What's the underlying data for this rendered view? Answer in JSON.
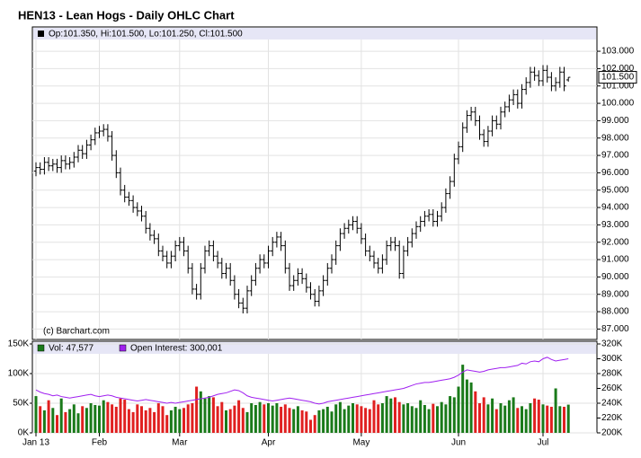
{
  "chart_data": [
    {
      "type": "ohlc",
      "title": "HEN13 - Lean Hogs - Daily OHLC Chart",
      "legend": "Op:101.350, Hi:101.500, Lo:101.250, Cl:101.500",
      "credit": "(c) Barchart.com",
      "color": "#000000",
      "open": [
        96.1,
        96.3,
        96.2,
        96.6,
        96.4,
        96.5,
        96.3,
        96.7,
        96.5,
        96.6,
        96.9,
        97.3,
        97.1,
        97.6,
        97.9,
        98.3,
        98.4,
        98.5,
        98.1,
        97.0,
        96.0,
        95.0,
        94.6,
        94.4,
        94.0,
        93.8,
        93.5,
        92.8,
        92.4,
        92.2,
        91.5,
        91.2,
        90.8,
        91.2,
        91.8,
        92.0,
        91.5,
        90.5,
        89.3,
        89.0,
        90.5,
        91.5,
        91.8,
        91.2,
        90.8,
        90.2,
        90.5,
        89.8,
        89.0,
        88.5,
        88.2,
        89.2,
        89.8,
        90.5,
        91.0,
        90.8,
        91.5,
        92.0,
        92.3,
        91.8,
        90.5,
        89.5,
        89.8,
        90.2,
        89.9,
        89.4,
        89.0,
        88.6,
        89.2,
        89.8,
        90.5,
        91.0,
        91.8,
        92.5,
        92.8,
        93.0,
        93.2,
        92.8,
        92.2,
        91.5,
        91.2,
        90.8,
        90.5,
        91.0,
        91.8,
        92.0,
        91.8,
        90.2,
        91.5,
        92.0,
        92.5,
        92.9,
        93.2,
        93.5,
        93.6,
        93.2,
        93.5,
        94.0,
        94.8,
        95.5,
        96.8,
        97.5,
        98.6,
        99.3,
        99.5,
        99.0,
        98.2,
        97.8,
        98.4,
        99.0,
        98.8,
        99.5,
        99.8,
        100.2,
        100.5,
        100.0,
        100.8,
        101.2,
        101.8,
        101.6,
        101.3,
        101.9,
        101.5,
        101.0,
        101.2,
        101.8,
        101.35
      ],
      "high": [
        96.6,
        96.6,
        96.9,
        96.9,
        96.8,
        96.8,
        97.0,
        97.0,
        96.9,
        97.2,
        97.6,
        97.6,
        97.9,
        98.2,
        98.6,
        98.7,
        98.8,
        98.8,
        98.4,
        97.3,
        96.3,
        95.3,
        94.9,
        94.7,
        94.3,
        94.1,
        93.8,
        93.1,
        92.7,
        92.5,
        91.8,
        91.5,
        91.5,
        92.1,
        92.3,
        92.3,
        91.8,
        90.8,
        89.6,
        90.8,
        91.8,
        92.1,
        92.1,
        91.5,
        91.1,
        90.8,
        90.8,
        90.1,
        89.3,
        88.8,
        89.5,
        90.1,
        90.8,
        91.3,
        91.3,
        91.8,
        92.3,
        92.6,
        92.6,
        92.1,
        90.8,
        90.1,
        90.5,
        90.5,
        90.2,
        89.7,
        89.3,
        89.5,
        90.1,
        90.8,
        91.3,
        92.1,
        92.8,
        93.1,
        93.3,
        93.5,
        93.5,
        93.1,
        92.5,
        91.8,
        91.5,
        91.1,
        91.3,
        92.1,
        92.3,
        92.3,
        92.1,
        91.8,
        92.3,
        92.8,
        93.2,
        93.5,
        93.8,
        93.9,
        93.9,
        93.8,
        94.3,
        95.1,
        95.8,
        97.1,
        97.8,
        98.9,
        99.6,
        99.8,
        99.8,
        99.3,
        98.5,
        98.7,
        99.3,
        99.3,
        99.8,
        100.1,
        100.5,
        100.8,
        100.8,
        101.1,
        101.5,
        102.1,
        102.1,
        101.9,
        102.2,
        102.2,
        101.8,
        101.5,
        102.1,
        102.1,
        101.5
      ],
      "low": [
        95.8,
        95.9,
        95.9,
        96.1,
        96.1,
        96.0,
        96.0,
        96.2,
        96.2,
        96.3,
        96.6,
        96.8,
        96.8,
        97.3,
        97.6,
        98.0,
        98.1,
        97.8,
        96.7,
        95.7,
        94.7,
        94.3,
        94.1,
        93.7,
        93.5,
        93.2,
        92.5,
        92.1,
        91.9,
        91.2,
        90.9,
        90.5,
        90.5,
        90.9,
        91.5,
        91.2,
        90.2,
        89.0,
        88.7,
        88.7,
        90.2,
        91.2,
        90.9,
        90.5,
        89.9,
        89.9,
        89.5,
        88.7,
        88.2,
        87.9,
        87.9,
        88.9,
        89.5,
        90.2,
        90.5,
        90.5,
        91.2,
        91.7,
        91.5,
        90.2,
        89.2,
        89.2,
        89.5,
        89.6,
        89.1,
        88.7,
        88.3,
        88.3,
        88.9,
        89.5,
        90.2,
        90.7,
        91.5,
        92.2,
        92.5,
        92.7,
        92.5,
        91.9,
        91.2,
        90.9,
        90.5,
        90.2,
        90.2,
        90.7,
        91.5,
        91.5,
        89.9,
        89.9,
        91.2,
        91.7,
        92.2,
        92.6,
        92.9,
        93.2,
        92.9,
        92.9,
        93.2,
        93.7,
        94.5,
        95.2,
        96.5,
        97.2,
        98.3,
        99.0,
        98.7,
        97.9,
        97.5,
        97.5,
        98.1,
        98.5,
        98.5,
        99.2,
        99.5,
        99.9,
        99.7,
        99.7,
        100.5,
        100.9,
        101.3,
        101.0,
        101.0,
        101.2,
        100.7,
        100.7,
        100.9,
        100.7,
        101.25
      ],
      "close": [
        96.3,
        96.2,
        96.6,
        96.4,
        96.5,
        96.3,
        96.7,
        96.5,
        96.6,
        96.9,
        97.3,
        97.1,
        97.6,
        97.9,
        98.3,
        98.4,
        98.5,
        98.1,
        97.0,
        96.0,
        95.0,
        94.6,
        94.4,
        94.0,
        93.8,
        93.5,
        92.8,
        92.4,
        92.2,
        91.5,
        91.2,
        90.8,
        91.2,
        91.8,
        92.0,
        91.5,
        90.5,
        89.3,
        89.0,
        90.5,
        91.5,
        91.8,
        91.2,
        90.8,
        90.2,
        90.5,
        89.8,
        89.0,
        88.5,
        88.2,
        89.2,
        89.8,
        90.5,
        91.0,
        90.8,
        91.5,
        92.0,
        92.3,
        91.8,
        90.5,
        89.5,
        89.8,
        90.2,
        89.9,
        89.4,
        89.0,
        88.6,
        89.2,
        89.8,
        90.5,
        91.0,
        91.8,
        92.5,
        92.8,
        93.0,
        93.2,
        92.8,
        92.2,
        91.5,
        91.2,
        90.8,
        90.5,
        91.0,
        91.8,
        92.0,
        91.8,
        90.2,
        91.5,
        92.0,
        92.5,
        92.9,
        93.2,
        93.5,
        93.6,
        93.2,
        93.5,
        94.0,
        94.8,
        95.5,
        96.8,
        97.5,
        98.6,
        99.3,
        99.5,
        99.0,
        98.2,
        97.8,
        98.4,
        99.0,
        98.8,
        99.5,
        99.8,
        100.2,
        100.5,
        100.0,
        100.8,
        101.2,
        101.8,
        101.6,
        101.3,
        101.9,
        101.5,
        101.0,
        101.2,
        101.8,
        101.0,
        101.5
      ],
      "last_label": {
        "value": 101.5,
        "label": "101.500"
      },
      "ylim": [
        86.4,
        104.4
      ],
      "yticks": [
        {
          "value": 87,
          "label": "87.000"
        },
        {
          "value": 88,
          "label": "88.000"
        },
        {
          "value": 89,
          "label": "89.000"
        },
        {
          "value": 90,
          "label": "90.000"
        },
        {
          "value": 91,
          "label": "91.000"
        },
        {
          "value": 92,
          "label": "92.000"
        },
        {
          "value": 93,
          "label": "93.000"
        },
        {
          "value": 94,
          "label": "94.000"
        },
        {
          "value": 95,
          "label": "95.000"
        },
        {
          "value": 96,
          "label": "96.000"
        },
        {
          "value": 97,
          "label": "97.000"
        },
        {
          "value": 98,
          "label": "98.000"
        },
        {
          "value": 99,
          "label": "99.000"
        },
        {
          "value": 100,
          "label": "100.000"
        },
        {
          "value": 101,
          "label": "101.000"
        },
        {
          "value": 102,
          "label": "102.000"
        },
        {
          "value": 103,
          "label": "103.000"
        }
      ],
      "grid": true
    },
    {
      "type": "bar",
      "categories": [
        "Jan 13",
        null,
        null,
        null,
        null,
        null,
        null,
        null,
        null,
        null,
        null,
        null,
        null,
        null,
        null,
        "Feb",
        null,
        null,
        null,
        null,
        null,
        null,
        null,
        null,
        null,
        null,
        null,
        null,
        null,
        null,
        null,
        null,
        null,
        null,
        "Mar",
        null,
        null,
        null,
        null,
        null,
        null,
        null,
        null,
        null,
        null,
        null,
        null,
        null,
        null,
        null,
        null,
        null,
        null,
        null,
        null,
        "Apr",
        null,
        null,
        null,
        null,
        null,
        null,
        null,
        null,
        null,
        null,
        null,
        null,
        null,
        null,
        null,
        null,
        null,
        null,
        null,
        null,
        null,
        "May",
        null,
        null,
        null,
        null,
        null,
        null,
        null,
        null,
        null,
        null,
        null,
        null,
        null,
        null,
        null,
        null,
        null,
        null,
        null,
        null,
        null,
        null,
        "Jun",
        null,
        null,
        null,
        null,
        null,
        null,
        null,
        null,
        null,
        null,
        null,
        null,
        null,
        null,
        null,
        null,
        null,
        null,
        null,
        "Jul",
        null,
        null,
        null,
        null,
        null,
        null
      ],
      "down_color": "#e02020",
      "series": [
        {
          "name": "Vol: 47,577",
          "color": "#1a7a1a",
          "values": [
            62000,
            45000,
            38000,
            55000,
            42000,
            30000,
            58000,
            35000,
            40000,
            48000,
            33000,
            45000,
            42000,
            50000,
            47000,
            46000,
            55000,
            52000,
            48000,
            44000,
            58000,
            56000,
            40000,
            35000,
            48000,
            45000,
            38000,
            42000,
            35000,
            50000,
            45000,
            30000,
            38000,
            44000,
            40000,
            42000,
            48000,
            50000,
            78000,
            70000,
            58000,
            62000,
            60000,
            45000,
            52000,
            38000,
            40000,
            46000,
            55000,
            42000,
            35000,
            50000,
            47000,
            52000,
            48000,
            50000,
            46000,
            50000,
            44000,
            48000,
            42000,
            40000,
            45000,
            38000,
            36000,
            22000,
            30000,
            38000,
            40000,
            44000,
            36000,
            48000,
            52000,
            40000,
            46000,
            50000,
            48000,
            45000,
            42000,
            40000,
            55000,
            48000,
            50000,
            62000,
            58000,
            60000,
            52000,
            48000,
            50000,
            45000,
            42000,
            55000,
            47000,
            40000,
            49000,
            45000,
            52000,
            48000,
            62000,
            60000,
            78000,
            115000,
            90000,
            85000,
            70000,
            50000,
            60000,
            48000,
            58000,
            40000,
            50000,
            46000,
            55000,
            60000,
            42000,
            45000,
            40000,
            50000,
            58000,
            56000,
            48000,
            46000,
            44000,
            75000,
            45000,
            44000,
            47577
          ]
        },
        {
          "name": "Open Interest: 300,001",
          "color": "#a020f0",
          "axis": "y2",
          "values": [
            258000,
            255000,
            253000,
            252000,
            250000,
            251000,
            249000,
            248000,
            247000,
            248000,
            249000,
            250000,
            251000,
            252000,
            250000,
            249000,
            250000,
            251000,
            250000,
            248000,
            247000,
            246000,
            245000,
            244000,
            243000,
            244000,
            245000,
            244000,
            243000,
            242000,
            241000,
            240000,
            241000,
            240000,
            241000,
            242000,
            243000,
            244000,
            245000,
            246000,
            247000,
            248000,
            250000,
            252000,
            253000,
            254000,
            256000,
            258000,
            257000,
            254000,
            250000,
            248000,
            247000,
            246000,
            245000,
            244000,
            243000,
            244000,
            245000,
            246000,
            247000,
            246000,
            245000,
            244000,
            243000,
            242000,
            240000,
            239000,
            240000,
            242000,
            243000,
            244000,
            245000,
            246000,
            247000,
            248000,
            249000,
            250000,
            251000,
            252000,
            253000,
            254000,
            255000,
            256000,
            257000,
            258000,
            259000,
            260000,
            262000,
            264000,
            266000,
            267000,
            268000,
            268000,
            269000,
            270000,
            271000,
            272000,
            273000,
            275000,
            278000,
            282000,
            285000,
            284000,
            283000,
            282000,
            283000,
            285000,
            286000,
            287000,
            288000,
            288000,
            289000,
            290000,
            291000,
            294000,
            293000,
            296000,
            297000,
            296000,
            300000,
            302000,
            299000,
            297000,
            298000,
            299000,
            300001
          ]
        }
      ],
      "ylim": [
        0,
        150000
      ],
      "yticks": [
        {
          "value": 0,
          "label": "0K"
        },
        {
          "value": 50000,
          "label": "50K"
        },
        {
          "value": 100000,
          "label": "100K"
        },
        {
          "value": 150000,
          "label": "150K"
        }
      ],
      "y2lim": [
        200000,
        320000
      ],
      "y2ticks": [
        {
          "value": 200000,
          "label": "200K"
        },
        {
          "value": 220000,
          "label": "220K"
        },
        {
          "value": 240000,
          "label": "240K"
        },
        {
          "value": 260000,
          "label": "260K"
        },
        {
          "value": 280000,
          "label": "280K"
        },
        {
          "value": 300000,
          "label": "300K"
        },
        {
          "value": 320000,
          "label": "320K"
        }
      ],
      "grid": true
    }
  ]
}
